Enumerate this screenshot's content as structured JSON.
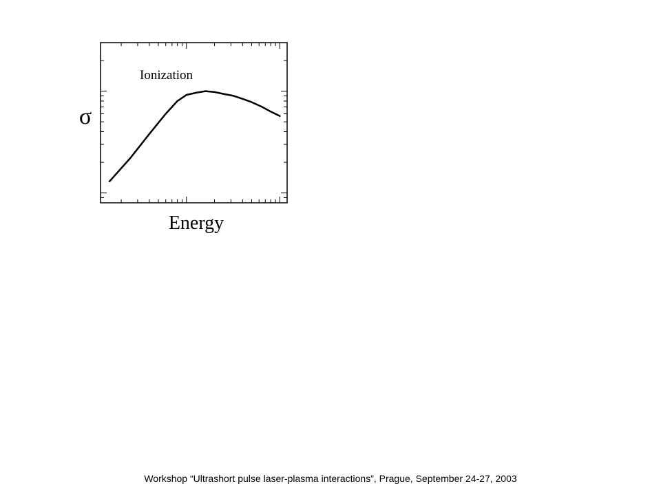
{
  "chart_data": {
    "type": "line",
    "x_scale": "log",
    "y_scale": "log",
    "xlabel": "Energy",
    "ylabel": "σ",
    "series": [
      {
        "name": "Ionization",
        "x": [
          0.15,
          0.25,
          0.4,
          0.6,
          0.8,
          1.0,
          1.3,
          1.6,
          2.0,
          2.5,
          3.2,
          4.0,
          5.0,
          6.5,
          8.0,
          10.0
        ],
        "y": [
          0.13,
          0.22,
          0.38,
          0.6,
          0.8,
          0.92,
          0.97,
          1.0,
          0.98,
          0.94,
          0.9,
          0.84,
          0.78,
          0.7,
          0.63,
          0.57
        ]
      }
    ],
    "xlim": [
      0.12,
      12
    ],
    "ylim": [
      0.08,
      3.0
    ],
    "grid": false
  },
  "footer": {
    "text": "Workshop “Ultrashort pulse laser-plasma interactions”, Prague, September 24-27, 2003"
  }
}
